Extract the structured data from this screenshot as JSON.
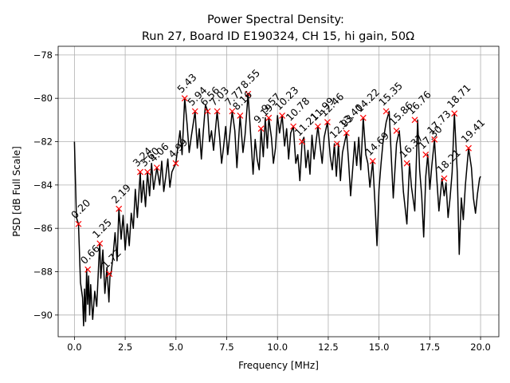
{
  "chart_data": {
    "type": "line",
    "title": [
      "Power Spectral Density:",
      "Run 27, Board ID E190324, CH 15, hi gain, 50Ω"
    ],
    "xlabel": "Frequency [MHz]",
    "ylabel": "PSD [dB Full Scale]",
    "xlim": [
      -0.8,
      20.9
    ],
    "ylim": [
      -91.0,
      -77.6
    ],
    "xticks": [
      0.0,
      2.5,
      5.0,
      7.5,
      10.0,
      12.5,
      15.0,
      17.5,
      20.0
    ],
    "xtick_labels": [
      "0.0",
      "2.5",
      "5.0",
      "7.5",
      "10.0",
      "12.5",
      "15.0",
      "17.5",
      "20.0"
    ],
    "yticks": [
      -90,
      -88,
      -86,
      -84,
      -82,
      -80,
      -78
    ],
    "ytick_labels": [
      "−90",
      "−88",
      "−86",
      "−84",
      "−82",
      "−80",
      "−78"
    ],
    "grid": true,
    "series": [
      {
        "color": "#000000",
        "x": [
          0.0,
          0.1,
          0.2,
          0.3,
          0.4,
          0.45,
          0.5,
          0.55,
          0.6,
          0.65,
          0.7,
          0.75,
          0.8,
          0.9,
          1.0,
          1.1,
          1.2,
          1.25,
          1.3,
          1.4,
          1.5,
          1.6,
          1.7,
          1.75,
          1.8,
          1.9,
          2.0,
          2.1,
          2.19,
          2.3,
          2.4,
          2.5,
          2.6,
          2.7,
          2.8,
          2.9,
          3.0,
          3.1,
          3.24,
          3.3,
          3.4,
          3.5,
          3.6,
          3.7,
          3.8,
          3.9,
          4.06,
          4.2,
          4.3,
          4.4,
          4.5,
          4.6,
          4.7,
          4.8,
          4.99,
          5.1,
          5.2,
          5.3,
          5.43,
          5.55,
          5.65,
          5.75,
          5.94,
          6.05,
          6.15,
          6.25,
          6.35,
          6.45,
          6.56,
          6.65,
          6.75,
          6.85,
          7.03,
          7.15,
          7.25,
          7.35,
          7.45,
          7.55,
          7.77,
          7.9,
          8.0,
          8.16,
          8.3,
          8.4,
          8.55,
          8.7,
          8.8,
          8.9,
          9.0,
          9.1,
          9.19,
          9.3,
          9.4,
          9.5,
          9.57,
          9.7,
          9.8,
          9.9,
          10.0,
          10.1,
          10.23,
          10.35,
          10.45,
          10.55,
          10.65,
          10.78,
          10.9,
          11.0,
          11.1,
          11.21,
          11.3,
          11.4,
          11.5,
          11.6,
          11.7,
          11.8,
          11.99,
          12.1,
          12.2,
          12.3,
          12.46,
          12.6,
          12.7,
          12.8,
          12.9,
          13.0,
          13.1,
          13.2,
          13.4,
          13.5,
          13.6,
          13.7,
          13.8,
          13.9,
          14.0,
          14.1,
          14.22,
          14.35,
          14.45,
          14.55,
          14.69,
          14.8,
          14.9,
          15.0,
          15.1,
          15.2,
          15.35,
          15.5,
          15.6,
          15.7,
          15.86,
          16.0,
          16.1,
          16.2,
          16.37,
          16.5,
          16.6,
          16.76,
          16.9,
          17.0,
          17.1,
          17.2,
          17.3,
          17.4,
          17.5,
          17.6,
          17.73,
          17.85,
          17.95,
          18.1,
          18.21,
          18.3,
          18.4,
          18.5,
          18.6,
          18.71,
          18.85,
          18.95,
          19.05,
          19.15,
          19.25,
          19.41,
          19.55,
          19.65,
          19.75,
          19.85,
          19.95,
          20.0
        ],
        "y": [
          -82.0,
          -85.5,
          -85.8,
          -88.5,
          -89.2,
          -90.5,
          -88.8,
          -90.3,
          -87.9,
          -89.5,
          -88.2,
          -90.0,
          -88.6,
          -90.2,
          -88.9,
          -89.6,
          -87.5,
          -86.7,
          -88.3,
          -87.0,
          -89.0,
          -87.8,
          -89.4,
          -88.2,
          -88.1,
          -87.3,
          -86.2,
          -87.5,
          -85.1,
          -86.5,
          -85.4,
          -87.0,
          -85.8,
          -86.8,
          -85.3,
          -86.0,
          -84.2,
          -85.5,
          -83.4,
          -84.8,
          -83.8,
          -85.0,
          -83.4,
          -84.5,
          -83.0,
          -84.2,
          -83.2,
          -84.0,
          -82.9,
          -84.3,
          -83.6,
          -82.8,
          -84.1,
          -83.4,
          -83.0,
          -82.2,
          -81.5,
          -82.6,
          -80.0,
          -81.2,
          -82.5,
          -81.8,
          -80.6,
          -82.3,
          -81.4,
          -82.8,
          -81.5,
          -80.3,
          -80.6,
          -82.0,
          -81.5,
          -82.4,
          -80.6,
          -81.8,
          -83.0,
          -82.2,
          -81.3,
          -82.6,
          -80.6,
          -81.5,
          -83.2,
          -80.8,
          -82.5,
          -81.7,
          -79.8,
          -82.0,
          -83.5,
          -81.9,
          -82.8,
          -83.3,
          -81.4,
          -82.7,
          -80.9,
          -82.3,
          -80.9,
          -81.8,
          -83.0,
          -82.3,
          -80.8,
          -81.6,
          -80.8,
          -82.2,
          -81.4,
          -82.8,
          -81.6,
          -81.3,
          -83.0,
          -82.6,
          -83.8,
          -82.0,
          -81.8,
          -83.2,
          -82.4,
          -83.5,
          -81.7,
          -82.8,
          -81.3,
          -82.2,
          -83.0,
          -81.8,
          -81.1,
          -82.7,
          -83.3,
          -82.1,
          -83.6,
          -82.1,
          -83.8,
          -82.5,
          -81.6,
          -82.9,
          -84.5,
          -83.3,
          -82.0,
          -83.1,
          -81.8,
          -83.3,
          -80.9,
          -82.6,
          -83.0,
          -84.1,
          -82.9,
          -84.8,
          -86.8,
          -84.2,
          -83.0,
          -82.0,
          -81.1,
          -80.6,
          -82.6,
          -84.6,
          -82.1,
          -81.5,
          -82.8,
          -84.3,
          -85.8,
          -83.0,
          -84.1,
          -85.2,
          -81.0,
          -83.3,
          -84.5,
          -86.4,
          -83.6,
          -82.6,
          -84.2,
          -83.1,
          -81.9,
          -83.8,
          -85.2,
          -83.7,
          -84.5,
          -83.9,
          -85.5,
          -84.6,
          -83.4,
          -80.7,
          -83.4,
          -87.2,
          -84.6,
          -85.6,
          -84.0,
          -82.3,
          -83.2,
          -84.6,
          -85.3,
          -84.4,
          -83.7,
          -83.6
        ]
      }
    ],
    "peaks": {
      "marker": "x",
      "color": "#ff0000",
      "labels": [
        "0.20",
        "0.66",
        "1.25",
        "1.72",
        "2.19",
        "3.24",
        "3.60",
        "4.06",
        "4.99",
        "5.43",
        "5.94",
        "6.56",
        "7.03",
        "7.77",
        "8.16",
        "8.55",
        "9.19",
        "9.57",
        "10.23",
        "10.78",
        "11.21",
        "11.99",
        "12.46",
        "12.93",
        "13.40",
        "14.22",
        "14.69",
        "15.35",
        "15.86",
        "16.37",
        "16.76",
        "17.30",
        "17.73",
        "18.21",
        "18.71",
        "19.41"
      ],
      "x": [
        0.2,
        0.66,
        1.25,
        1.72,
        2.19,
        3.24,
        3.6,
        4.06,
        4.99,
        5.43,
        5.94,
        6.56,
        7.03,
        7.77,
        8.16,
        8.55,
        9.19,
        9.57,
        10.23,
        10.78,
        11.21,
        11.99,
        12.46,
        12.93,
        13.4,
        14.22,
        14.69,
        15.35,
        15.86,
        16.37,
        16.76,
        17.3,
        17.73,
        18.21,
        18.71,
        19.41
      ],
      "y": [
        -85.8,
        -87.9,
        -86.7,
        -88.1,
        -85.1,
        -83.4,
        -83.4,
        -83.2,
        -83.0,
        -80.0,
        -80.6,
        -80.6,
        -80.6,
        -80.6,
        -80.8,
        -79.8,
        -81.4,
        -80.9,
        -80.8,
        -81.3,
        -82.0,
        -81.3,
        -81.1,
        -82.1,
        -81.6,
        -80.9,
        -82.9,
        -80.6,
        -81.5,
        -83.0,
        -81.0,
        -82.6,
        -81.9,
        -83.7,
        -80.7,
        -82.3
      ]
    }
  }
}
